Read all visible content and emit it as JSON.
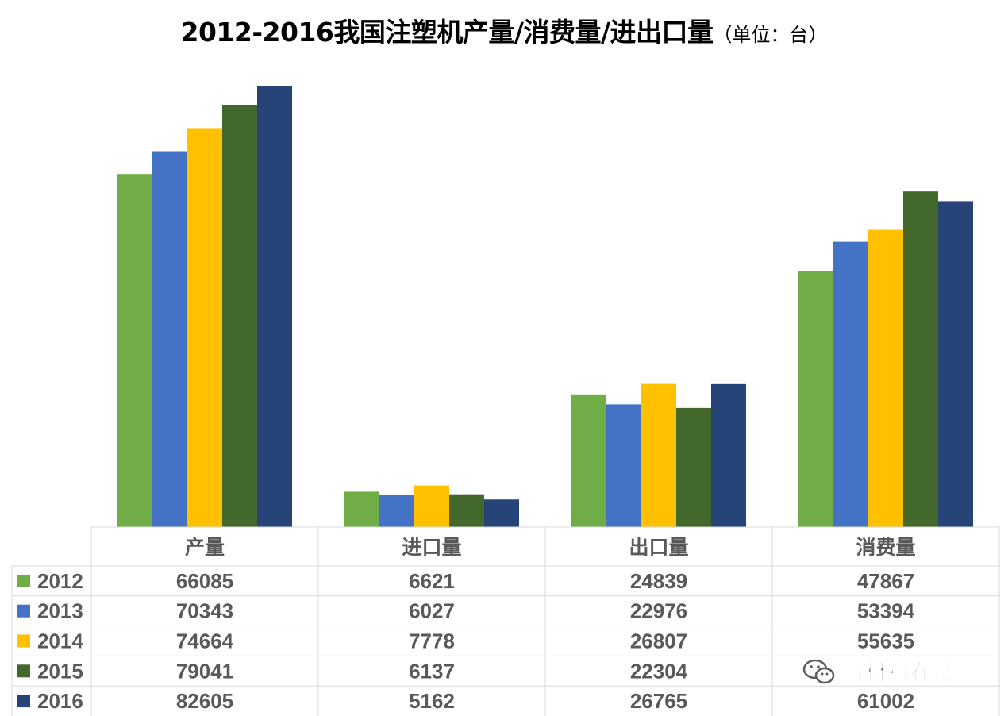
{
  "chart_data": {
    "type": "bar",
    "title": "2012-2016我国注塑机产量/消费量/进出口量",
    "subtitle": "（单位：台）",
    "categories": [
      "产量",
      "进口量",
      "出口量",
      "消费量"
    ],
    "series": [
      {
        "name": "2012",
        "color": "#70AD47",
        "values": [
          66085,
          6621,
          24839,
          47867
        ]
      },
      {
        "name": "2013",
        "color": "#4472C4",
        "values": [
          70343,
          6027,
          22976,
          53394
        ]
      },
      {
        "name": "2014",
        "color": "#FFC000",
        "values": [
          74664,
          7778,
          26807,
          55635
        ]
      },
      {
        "name": "2015",
        "color": "#43682B",
        "values": [
          79041,
          6137,
          22304,
          62817
        ]
      },
      {
        "name": "2016",
        "color": "#264478",
        "values": [
          82605,
          5162,
          26765,
          61002
        ]
      }
    ],
    "xlabel": "",
    "ylabel": "",
    "ylim": [
      0,
      82605
    ],
    "grid": false,
    "legend": "data-table"
  },
  "table_cells": [
    [
      "66085",
      "6621",
      "24839",
      "47867"
    ],
    [
      "70343",
      "6027",
      "22976",
      "53394"
    ],
    [
      "74664",
      "7778",
      "26807",
      "55635"
    ],
    [
      "79041",
      "6137",
      "22304",
      ""
    ],
    [
      "82605",
      "5162",
      "26765",
      "61002"
    ]
  ],
  "watermark": {
    "text": "新材料在线",
    "icon": "wechat-icon"
  }
}
